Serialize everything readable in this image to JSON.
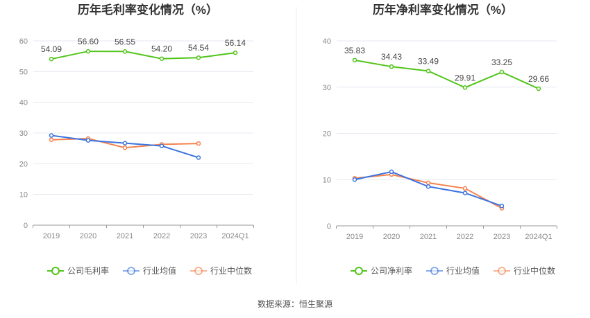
{
  "chart_data": [
    {
      "type": "line",
      "title": "历年毛利率变化情况（%）",
      "categories": [
        "2019",
        "2020",
        "2021",
        "2022",
        "2023",
        "2024Q1"
      ],
      "ylim": [
        0,
        60
      ],
      "yticks": [
        0,
        10,
        20,
        30,
        40,
        50,
        60
      ],
      "grid": true,
      "legend": "bottom",
      "series": [
        {
          "name": "公司毛利率",
          "color": "#52c41a",
          "values": [
            54.09,
            56.6,
            56.55,
            54.2,
            54.54,
            56.14
          ],
          "labels": true
        },
        {
          "name": "行业均值",
          "color": "#3b74e0",
          "values": [
            29.2,
            27.6,
            26.7,
            25.8,
            22.0,
            null
          ]
        },
        {
          "name": "行业中位数",
          "color": "#f5814e",
          "values": [
            27.8,
            28.2,
            25.2,
            26.3,
            26.6,
            null
          ]
        }
      ]
    },
    {
      "type": "line",
      "title": "历年净利率变化情况（%）",
      "categories": [
        "2019",
        "2020",
        "2021",
        "2022",
        "2023",
        "2024Q1"
      ],
      "ylim": [
        0,
        40
      ],
      "yticks": [
        0,
        10,
        20,
        30,
        40
      ],
      "grid": true,
      "legend": "bottom",
      "series": [
        {
          "name": "公司净利率",
          "color": "#52c41a",
          "values": [
            35.83,
            34.43,
            33.49,
            29.91,
            33.25,
            29.66
          ],
          "labels": true
        },
        {
          "name": "行业均值",
          "color": "#3b74e0",
          "values": [
            10.0,
            11.7,
            8.5,
            7.1,
            4.3,
            null
          ]
        },
        {
          "name": "行业中位数",
          "color": "#f5814e",
          "values": [
            10.3,
            11.1,
            9.3,
            8.1,
            3.8,
            null
          ]
        }
      ]
    }
  ],
  "source": "数据来源：恒生聚源"
}
